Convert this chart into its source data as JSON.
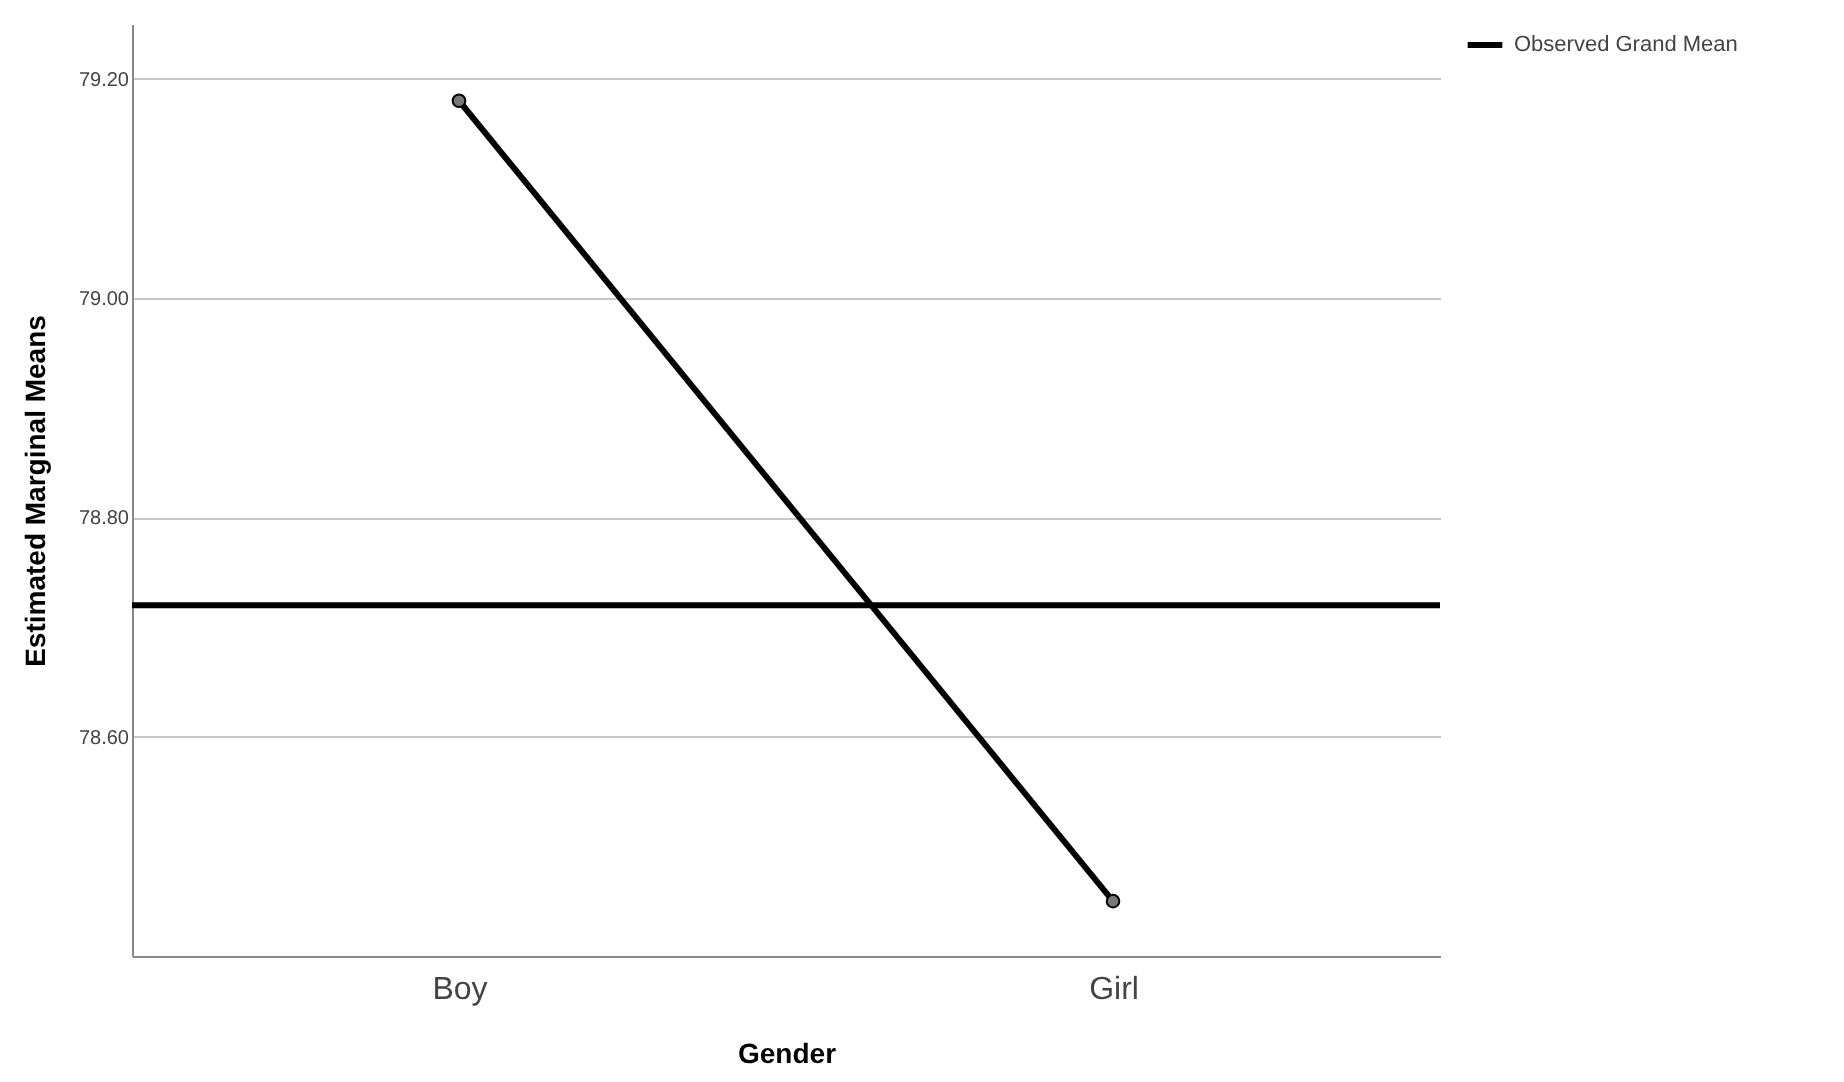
{
  "chart_data": {
    "type": "line",
    "xlabel": "Gender",
    "ylabel": "Estimated Marginal Means",
    "categories": [
      "Boy",
      "Girl"
    ],
    "series": [
      {
        "color": "#000000",
        "values": [
          79.18,
          78.45
        ]
      }
    ],
    "ylim": [
      78.4,
      79.25
    ],
    "yticks": [
      {
        "value": 78.6,
        "label": "78.60"
      },
      {
        "value": 78.8,
        "label": "78.80"
      },
      {
        "value": 79.0,
        "label": "79.00"
      },
      {
        "value": 79.2,
        "label": "79.20"
      }
    ],
    "ref_lines": [
      {
        "axis": "y",
        "value": 78.72,
        "label": "Observed Grand Mean",
        "color": "#000000"
      }
    ],
    "grid": "y",
    "legend": "right",
    "marker": "circle"
  }
}
